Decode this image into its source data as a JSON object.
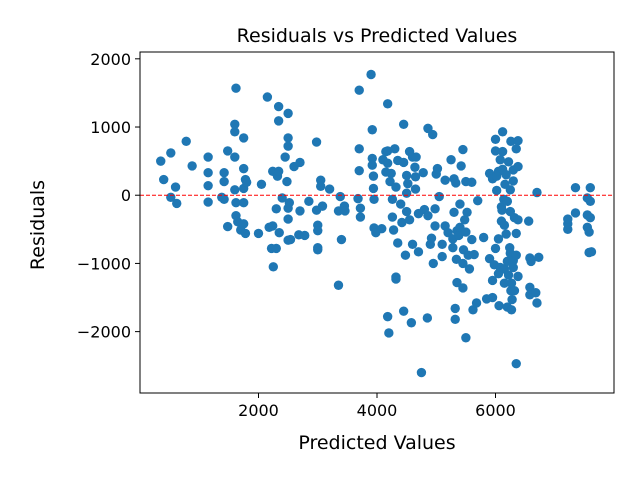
{
  "chart_data": {
    "type": "scatter",
    "title": "Residuals vs Predicted Values",
    "xlabel": "Predicted Values",
    "ylabel": "Residuals",
    "xlim": [
      0,
      8000
    ],
    "ylim": [
      -2900,
      2100
    ],
    "xticks": [
      2000,
      4000,
      6000
    ],
    "xtick_labels": [
      "2000",
      "4000",
      "6000"
    ],
    "yticks": [
      2000,
      1000,
      0,
      -1000,
      -2000
    ],
    "ytick_labels": [
      "2000",
      "1000",
      "0",
      "−1000",
      "−2000"
    ],
    "grid": false,
    "point_color": "#1f77b4",
    "reference_line": {
      "y": 0,
      "color": "#ff0000",
      "style": "dashed"
    },
    "points": [
      [
        350,
        500
      ],
      [
        400,
        230
      ],
      [
        520,
        620
      ],
      [
        520,
        -30
      ],
      [
        600,
        120
      ],
      [
        620,
        -120
      ],
      [
        780,
        790
      ],
      [
        880,
        430
      ],
      [
        1150,
        560
      ],
      [
        1150,
        330
      ],
      [
        1150,
        140
      ],
      [
        1150,
        -100
      ],
      [
        1380,
        -30
      ],
      [
        1420,
        -60
      ],
      [
        1420,
        330
      ],
      [
        1420,
        200
      ],
      [
        1480,
        -460
      ],
      [
        1480,
        650
      ],
      [
        1600,
        930
      ],
      [
        1600,
        1040
      ],
      [
        1600,
        560
      ],
      [
        1600,
        80
      ],
      [
        1620,
        1570
      ],
      [
        1620,
        -300
      ],
      [
        1620,
        -110
      ],
      [
        1650,
        -390
      ],
      [
        1700,
        -510
      ],
      [
        1750,
        840
      ],
      [
        1750,
        390
      ],
      [
        1750,
        100
      ],
      [
        1750,
        -110
      ],
      [
        1750,
        -420
      ],
      [
        1780,
        -560
      ],
      [
        1780,
        230
      ],
      [
        1800,
        190
      ],
      [
        2000,
        -560
      ],
      [
        2050,
        160
      ],
      [
        2150,
        1440
      ],
      [
        2180,
        -470
      ],
      [
        2220,
        -780
      ],
      [
        2240,
        350
      ],
      [
        2240,
        -450
      ],
      [
        2250,
        -1050
      ],
      [
        2300,
        -200
      ],
      [
        2300,
        -780
      ],
      [
        2320,
        280
      ],
      [
        2340,
        1300
      ],
      [
        2340,
        1090
      ],
      [
        2340,
        350
      ],
      [
        2350,
        -550
      ],
      [
        2400,
        -40
      ],
      [
        2450,
        560
      ],
      [
        2480,
        200
      ],
      [
        2500,
        1200
      ],
      [
        2500,
        840
      ],
      [
        2500,
        720
      ],
      [
        2500,
        -660
      ],
      [
        2500,
        -350
      ],
      [
        2500,
        -190
      ],
      [
        2520,
        -110
      ],
      [
        2540,
        -650
      ],
      [
        2600,
        420
      ],
      [
        2680,
        -580
      ],
      [
        2700,
        480
      ],
      [
        2700,
        -230
      ],
      [
        2780,
        -590
      ],
      [
        2850,
        -90
      ],
      [
        2980,
        780
      ],
      [
        2980,
        -220
      ],
      [
        3000,
        -440
      ],
      [
        3000,
        -520
      ],
      [
        3000,
        -800
      ],
      [
        3000,
        -770
      ],
      [
        3050,
        220
      ],
      [
        3050,
        130
      ],
      [
        3080,
        -160
      ],
      [
        3200,
        90
      ],
      [
        3350,
        -1320
      ],
      [
        3350,
        -230
      ],
      [
        3380,
        -20
      ],
      [
        3400,
        -650
      ],
      [
        3450,
        -160
      ],
      [
        3460,
        -230
      ],
      [
        3680,
        -50
      ],
      [
        3700,
        1540
      ],
      [
        3700,
        680
      ],
      [
        3700,
        360
      ],
      [
        3720,
        -190
      ],
      [
        3720,
        -320
      ],
      [
        3900,
        1770
      ],
      [
        3920,
        960
      ],
      [
        3920,
        540
      ],
      [
        3920,
        440
      ],
      [
        3940,
        280
      ],
      [
        3940,
        100
      ],
      [
        3950,
        -60
      ],
      [
        3950,
        -480
      ],
      [
        3980,
        -550
      ],
      [
        4080,
        -490
      ],
      [
        4100,
        520
      ],
      [
        4150,
        640
      ],
      [
        4150,
        340
      ],
      [
        4180,
        1340
      ],
      [
        4180,
        650
      ],
      [
        4180,
        470
      ],
      [
        4180,
        -1780
      ],
      [
        4200,
        -2020
      ],
      [
        4220,
        200
      ],
      [
        4240,
        320
      ],
      [
        4260,
        -60
      ],
      [
        4260,
        -320
      ],
      [
        4280,
        -510
      ],
      [
        4300,
        680
      ],
      [
        4320,
        120
      ],
      [
        4320,
        -1200
      ],
      [
        4320,
        -1230
      ],
      [
        4350,
        510
      ],
      [
        4350,
        -700
      ],
      [
        4400,
        -130
      ],
      [
        4420,
        -400
      ],
      [
        4450,
        1040
      ],
      [
        4450,
        480
      ],
      [
        4450,
        -1700
      ],
      [
        4480,
        -880
      ],
      [
        4500,
        290
      ],
      [
        4500,
        30
      ],
      [
        4500,
        -240
      ],
      [
        4520,
        170
      ],
      [
        4550,
        640
      ],
      [
        4550,
        -360
      ],
      [
        4580,
        -1870
      ],
      [
        4600,
        560
      ],
      [
        4600,
        -720
      ],
      [
        4640,
        410
      ],
      [
        4650,
        90
      ],
      [
        4650,
        270
      ],
      [
        4660,
        560
      ],
      [
        4700,
        -270
      ],
      [
        4700,
        -830
      ],
      [
        4750,
        -2600
      ],
      [
        4780,
        330
      ],
      [
        4800,
        -210
      ],
      [
        4850,
        -1800
      ],
      [
        4860,
        -300
      ],
      [
        4860,
        980
      ],
      [
        4900,
        -720
      ],
      [
        4920,
        -630
      ],
      [
        4940,
        890
      ],
      [
        4950,
        -1000
      ],
      [
        4980,
        -450
      ],
      [
        4980,
        -200
      ],
      [
        5000,
        310
      ],
      [
        5020,
        390
      ],
      [
        5050,
        -20
      ],
      [
        5100,
        -720
      ],
      [
        5100,
        -900
      ],
      [
        5150,
        220
      ],
      [
        5150,
        -450
      ],
      [
        5200,
        -550
      ],
      [
        5250,
        520
      ],
      [
        5280,
        -640
      ],
      [
        5280,
        -770
      ],
      [
        5300,
        240
      ],
      [
        5300,
        -250
      ],
      [
        5320,
        -1660
      ],
      [
        5320,
        -1820
      ],
      [
        5330,
        180
      ],
      [
        5340,
        -940
      ],
      [
        5350,
        -1280
      ],
      [
        5350,
        -520
      ],
      [
        5380,
        -590
      ],
      [
        5400,
        -470
      ],
      [
        5400,
        -130
      ],
      [
        5420,
        430
      ],
      [
        5450,
        670
      ],
      [
        5450,
        -1360
      ],
      [
        5450,
        -1000
      ],
      [
        5460,
        -800
      ],
      [
        5480,
        -360
      ],
      [
        5500,
        -2090
      ],
      [
        5500,
        200
      ],
      [
        5500,
        -540
      ],
      [
        5520,
        -250
      ],
      [
        5540,
        -880
      ],
      [
        5560,
        -1080
      ],
      [
        5600,
        -650
      ],
      [
        5600,
        190
      ],
      [
        5620,
        -1680
      ],
      [
        5640,
        -870
      ],
      [
        5680,
        -1580
      ],
      [
        5700,
        -80
      ],
      [
        5800,
        -620
      ],
      [
        5850,
        -1520
      ],
      [
        5900,
        320
      ],
      [
        5900,
        -930
      ],
      [
        5950,
        -1250
      ],
      [
        5950,
        -1500
      ],
      [
        5950,
        240
      ],
      [
        5980,
        -1020
      ],
      [
        6000,
        820
      ],
      [
        6000,
        650
      ],
      [
        6000,
        -780
      ],
      [
        6020,
        70
      ],
      [
        6020,
        280
      ],
      [
        6050,
        -640
      ],
      [
        6050,
        -1150
      ],
      [
        6050,
        350
      ],
      [
        6060,
        -1620
      ],
      [
        6080,
        520
      ],
      [
        6080,
        -1060
      ],
      [
        6100,
        -170
      ],
      [
        6100,
        -380
      ],
      [
        6110,
        -220
      ],
      [
        6120,
        930
      ],
      [
        6120,
        640
      ],
      [
        6120,
        380
      ],
      [
        6140,
        -60
      ],
      [
        6150,
        -1080
      ],
      [
        6150,
        -440
      ],
      [
        6150,
        -1290
      ],
      [
        6160,
        160
      ],
      [
        6180,
        300
      ],
      [
        6180,
        -570
      ],
      [
        6200,
        -970
      ],
      [
        6200,
        -1640
      ],
      [
        6200,
        -90
      ],
      [
        6220,
        490
      ],
      [
        6220,
        -1170
      ],
      [
        6240,
        -770
      ],
      [
        6250,
        -850
      ],
      [
        6250,
        -240
      ],
      [
        6250,
        80
      ],
      [
        6260,
        -1400
      ],
      [
        6260,
        790
      ],
      [
        6270,
        -1290
      ],
      [
        6270,
        -1680
      ],
      [
        6280,
        -1530
      ],
      [
        6300,
        210
      ],
      [
        6300,
        370
      ],
      [
        6300,
        -960
      ],
      [
        6300,
        -1060
      ],
      [
        6320,
        -1400
      ],
      [
        6320,
        -330
      ],
      [
        6350,
        -2470
      ],
      [
        6350,
        680
      ],
      [
        6350,
        -560
      ],
      [
        6350,
        -880
      ],
      [
        6380,
        800
      ],
      [
        6380,
        420
      ],
      [
        6380,
        -1190
      ],
      [
        6380,
        -360
      ],
      [
        6560,
        -380
      ],
      [
        6580,
        -1350
      ],
      [
        6580,
        -1460
      ],
      [
        6580,
        -920
      ],
      [
        6600,
        -970
      ],
      [
        6680,
        -1430
      ],
      [
        6700,
        40
      ],
      [
        6700,
        -1580
      ],
      [
        6730,
        -910
      ],
      [
        7220,
        -500
      ],
      [
        7220,
        -420
      ],
      [
        7220,
        -350
      ],
      [
        7350,
        110
      ],
      [
        7350,
        -260
      ],
      [
        7550,
        -40
      ],
      [
        7550,
        -290
      ],
      [
        7550,
        -470
      ],
      [
        7580,
        -540
      ],
      [
        7580,
        -840
      ],
      [
        7600,
        -330
      ],
      [
        7600,
        110
      ],
      [
        7600,
        -90
      ],
      [
        7620,
        -830
      ]
    ]
  }
}
